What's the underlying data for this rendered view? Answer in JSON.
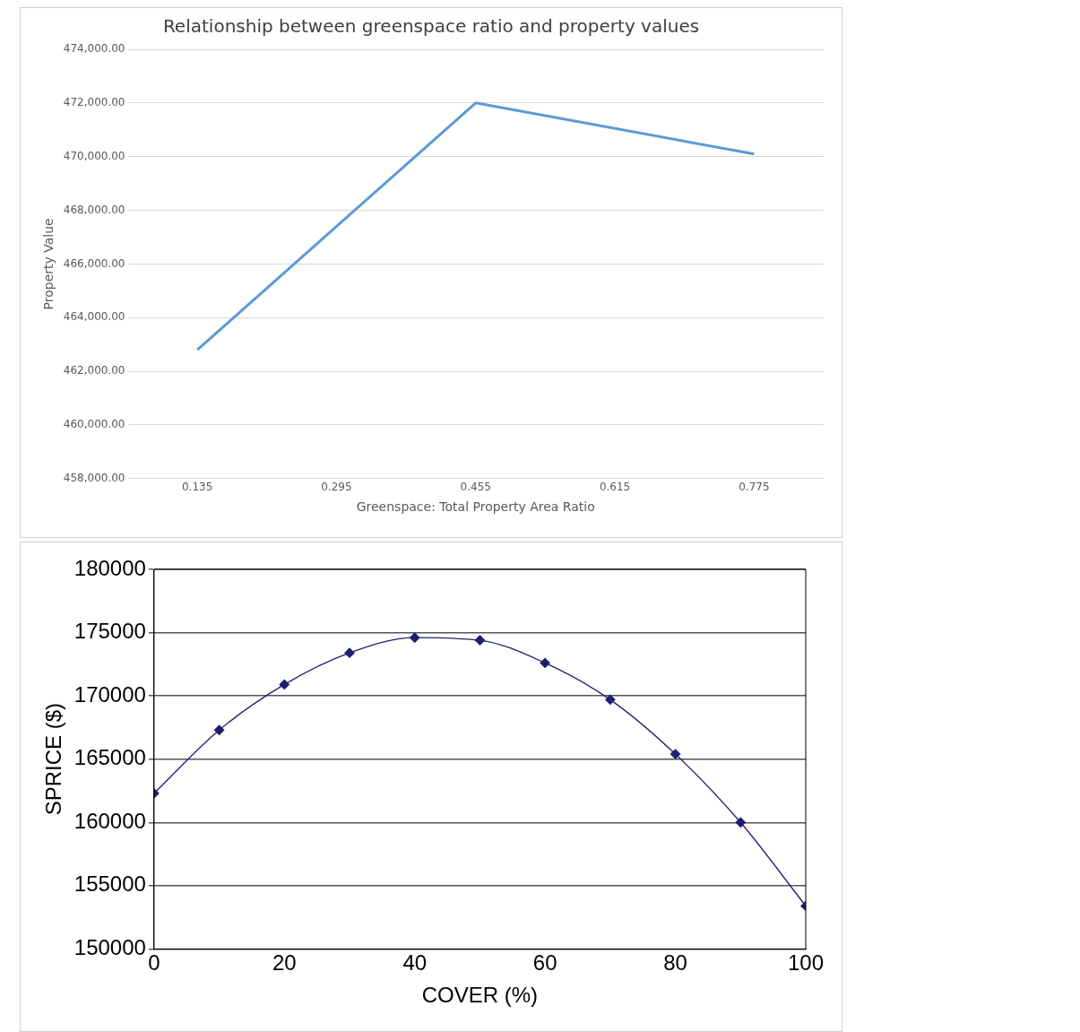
{
  "chart_data": [
    {
      "type": "line",
      "title": "Relationship between greenspace ratio and property values",
      "xlabel": "Greenspace: Total Property Area Ratio",
      "ylabel": "Property Value",
      "series": [
        {
          "color": "#5b9bd5",
          "x": [
            0.135,
            0.455,
            0.775
          ],
          "values": [
            462800,
            472000,
            470100
          ]
        }
      ],
      "xlim": [
        0.055,
        0.855
      ],
      "xticks": [
        0.135,
        0.295,
        0.455,
        0.615,
        0.775
      ],
      "ylim": [
        458000,
        474000
      ],
      "yticks": [
        {
          "value": 458000,
          "label": "458,000.00"
        },
        {
          "value": 460000,
          "label": "460,000.00"
        },
        {
          "value": 462000,
          "label": "462,000.00"
        },
        {
          "value": 464000,
          "label": "464,000.00"
        },
        {
          "value": 466000,
          "label": "466,000.00"
        },
        {
          "value": 468000,
          "label": "468,000.00"
        },
        {
          "value": 470000,
          "label": "470,000.00"
        },
        {
          "value": 472000,
          "label": "472,000.00"
        },
        {
          "value": 474000,
          "label": "474,000.00"
        }
      ],
      "grid": "y",
      "marker": "none",
      "line_style": "solid"
    },
    {
      "type": "line",
      "xlabel": "COVER (%)",
      "ylabel": "SPRICE ($)",
      "series": [
        {
          "color": "#1f1f6e",
          "x": [
            0,
            10,
            20,
            30,
            40,
            50,
            60,
            70,
            80,
            90,
            100
          ],
          "values": [
            162300,
            167300,
            170900,
            173400,
            174600,
            174400,
            172600,
            169700,
            165400,
            160000,
            153400
          ]
        }
      ],
      "xlim": [
        0,
        100
      ],
      "xticks": [
        0,
        20,
        40,
        60,
        80,
        100
      ],
      "ylim": [
        150000,
        180000
      ],
      "yticks": [
        150000,
        155000,
        160000,
        165000,
        170000,
        175000,
        180000
      ],
      "grid": "y",
      "marker": "diamond",
      "line_style": "solid"
    }
  ]
}
